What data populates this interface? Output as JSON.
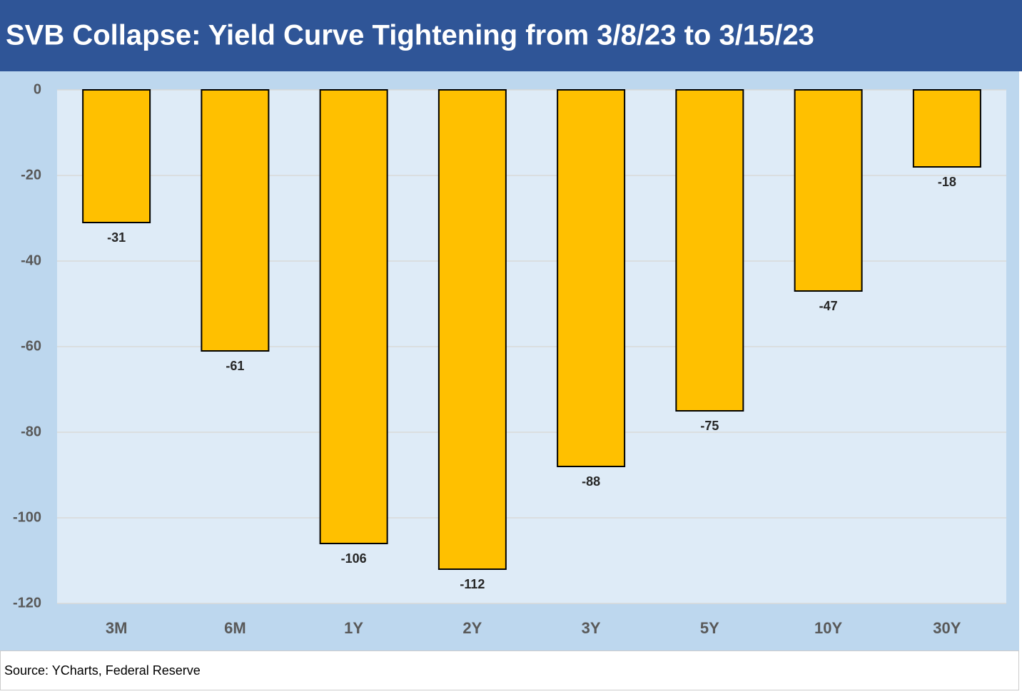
{
  "chart_data": {
    "type": "bar",
    "title": "SVB Collapse: Yield Curve Tightening from 3/8/23 to 3/15/23",
    "categories": [
      "3M",
      "6M",
      "1Y",
      "2Y",
      "3Y",
      "5Y",
      "10Y",
      "30Y"
    ],
    "values": [
      -31,
      -61,
      -106,
      -112,
      -88,
      -75,
      -47,
      -18
    ],
    "color": "#ffc000",
    "ylim": [
      -120,
      0
    ],
    "yticks": [
      0,
      -20,
      -40,
      -60,
      -80,
      -100,
      -120
    ],
    "grid": true,
    "source": "Source: YCharts, Federal Reserve"
  }
}
